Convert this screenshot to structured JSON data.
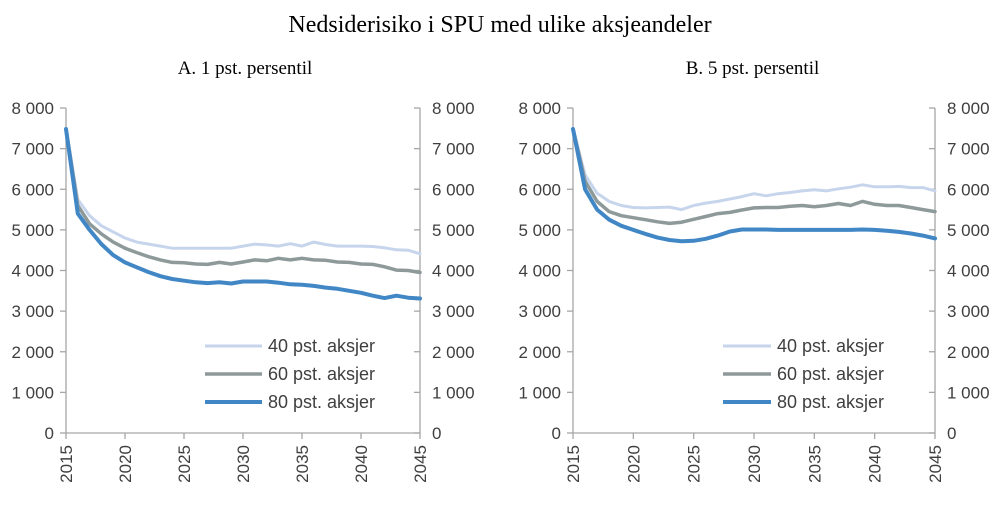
{
  "title": "Nedsiderisiko i SPU med ulike aksjeandeler",
  "style": {
    "axis_color": "#a6a6a6",
    "tick_text_color": "#3f3f3f",
    "legend_text_color": "#3f3f3f",
    "series_colors": {
      "40": "#c7d5ec",
      "60": "#8e999a",
      "80": "#4187c5"
    }
  },
  "legend": {
    "items": [
      {
        "label": "40 pst. aksjer",
        "color": "#c7d5ec"
      },
      {
        "label": "60 pst. aksjer",
        "color": "#8e999a"
      },
      {
        "label": "80 pst. aksjer",
        "color": "#4187c5"
      }
    ],
    "position": "inside lower right of each panel"
  },
  "chart_data": [
    {
      "id": "A",
      "type": "line",
      "subtitle": "A. 1 pst. persentil",
      "xlabel": "",
      "ylabel": "",
      "ylim": [
        0,
        8000
      ],
      "grid": false,
      "dual_y_axis": true,
      "x": [
        2015,
        2016,
        2017,
        2018,
        2019,
        2020,
        2021,
        2022,
        2023,
        2024,
        2025,
        2026,
        2027,
        2028,
        2029,
        2030,
        2031,
        2032,
        2033,
        2034,
        2035,
        2036,
        2037,
        2038,
        2039,
        2040,
        2041,
        2042,
        2043,
        2044,
        2045
      ],
      "x_tick_years": [
        2015,
        2020,
        2025,
        2030,
        2035,
        2040,
        2045
      ],
      "x_tick_labels": [
        "2015",
        "2020",
        "2025",
        "2030",
        "2035",
        "2040",
        "2045"
      ],
      "y_ticks": [
        0,
        1000,
        2000,
        3000,
        4000,
        5000,
        6000,
        7000,
        8000
      ],
      "y_tick_labels": [
        "0",
        "1 000",
        "2 000",
        "3 000",
        "4 000",
        "5 000",
        "6 000",
        "7 000",
        "8 000"
      ],
      "series": [
        {
          "name": "40 pst. aksjer",
          "color": "#c7d5ec",
          "values": [
            7500,
            5750,
            5350,
            5100,
            4950,
            4800,
            4700,
            4650,
            4600,
            4550,
            4550,
            4550,
            4550,
            4550,
            4550,
            4600,
            4650,
            4630,
            4600,
            4660,
            4600,
            4700,
            4640,
            4600,
            4600,
            4600,
            4590,
            4560,
            4510,
            4500,
            4410
          ]
        },
        {
          "name": "60 pst. aksjer",
          "color": "#8e999a",
          "values": [
            7490,
            5600,
            5150,
            4900,
            4700,
            4550,
            4440,
            4340,
            4260,
            4200,
            4190,
            4160,
            4150,
            4200,
            4160,
            4210,
            4260,
            4240,
            4300,
            4260,
            4300,
            4260,
            4250,
            4210,
            4200,
            4160,
            4150,
            4090,
            4010,
            4000,
            3950
          ]
        },
        {
          "name": "80 pst. aksjer",
          "color": "#4187c5",
          "values": [
            7480,
            5400,
            5000,
            4650,
            4380,
            4200,
            4080,
            3960,
            3860,
            3790,
            3750,
            3710,
            3690,
            3710,
            3680,
            3730,
            3730,
            3730,
            3700,
            3660,
            3650,
            3620,
            3580,
            3550,
            3500,
            3450,
            3380,
            3320,
            3380,
            3330,
            3310
          ]
        }
      ]
    },
    {
      "id": "B",
      "type": "line",
      "subtitle": "B. 5 pst. persentil",
      "xlabel": "",
      "ylabel": "",
      "ylim": [
        0,
        8000
      ],
      "grid": false,
      "dual_y_axis": true,
      "x": [
        2015,
        2016,
        2017,
        2018,
        2019,
        2020,
        2021,
        2022,
        2023,
        2024,
        2025,
        2026,
        2027,
        2028,
        2029,
        2030,
        2031,
        2032,
        2033,
        2034,
        2035,
        2036,
        2037,
        2038,
        2039,
        2040,
        2041,
        2042,
        2043,
        2044,
        2045
      ],
      "x_tick_years": [
        2015,
        2020,
        2025,
        2030,
        2035,
        2040,
        2045
      ],
      "x_tick_labels": [
        "2015",
        "2020",
        "2025",
        "2030",
        "2035",
        "2040",
        "2045"
      ],
      "y_ticks": [
        0,
        1000,
        2000,
        3000,
        4000,
        5000,
        6000,
        7000,
        8000
      ],
      "y_tick_labels": [
        "0",
        "1 000",
        "2 000",
        "3 000",
        "4 000",
        "5 000",
        "6 000",
        "7 000",
        "8 000"
      ],
      "series": [
        {
          "name": "40 pst. aksjer",
          "color": "#c7d5ec",
          "values": [
            7500,
            6350,
            5900,
            5700,
            5600,
            5550,
            5540,
            5550,
            5560,
            5500,
            5600,
            5660,
            5700,
            5760,
            5820,
            5890,
            5840,
            5890,
            5920,
            5960,
            5990,
            5960,
            6010,
            6050,
            6110,
            6060,
            6060,
            6070,
            6040,
            6040,
            5960
          ]
        },
        {
          "name": "60 pst. aksjer",
          "color": "#8e999a",
          "values": [
            7490,
            6200,
            5700,
            5450,
            5350,
            5300,
            5250,
            5200,
            5160,
            5190,
            5260,
            5330,
            5400,
            5430,
            5490,
            5540,
            5550,
            5550,
            5580,
            5600,
            5570,
            5600,
            5650,
            5600,
            5700,
            5630,
            5600,
            5600,
            5550,
            5500,
            5450
          ]
        },
        {
          "name": "80 pst. aksjer",
          "color": "#4187c5",
          "values": [
            7480,
            6000,
            5500,
            5250,
            5100,
            5000,
            4900,
            4810,
            4750,
            4720,
            4730,
            4780,
            4860,
            4960,
            5010,
            5010,
            5010,
            5000,
            5000,
            5000,
            5000,
            5000,
            5000,
            5000,
            5010,
            5000,
            4980,
            4950,
            4910,
            4860,
            4790
          ]
        }
      ]
    }
  ]
}
